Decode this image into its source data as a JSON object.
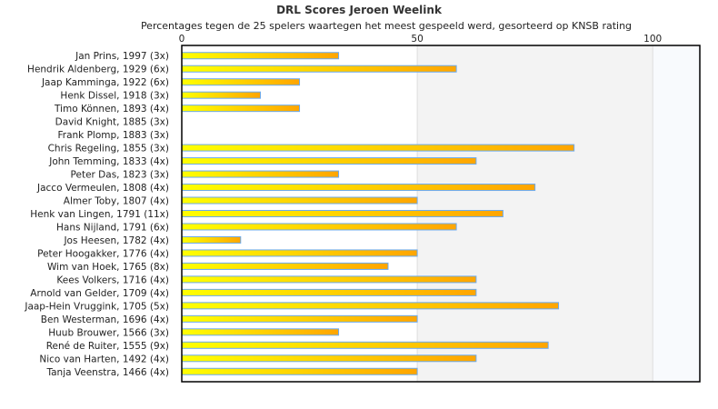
{
  "chart_data": {
    "type": "bar",
    "orientation": "horizontal",
    "title": "DRL Scores Jeroen Weelink",
    "subtitle": "Percentages tegen de 25 spelers waartegen het meest gespeeld werd, gesorteerd op KNSB rating",
    "xlim": [
      0,
      110
    ],
    "xticks": [
      0,
      50,
      100
    ],
    "grid": true,
    "categories": [
      "Jan Prins, 1997 (3x)",
      "Hendrik Aldenberg, 1929 (6x)",
      "Jaap Kamminga, 1922 (6x)",
      "Henk Dissel, 1918 (3x)",
      "Timo Können, 1893 (4x)",
      "David Knight, 1885 (3x)",
      "Frank Plomp, 1883 (3x)",
      "Chris Regeling, 1855 (3x)",
      "John Temming, 1833 (4x)",
      "Peter Das, 1823 (3x)",
      "Jacco Vermeulen, 1808 (4x)",
      "Almer Toby, 1807 (4x)",
      "Henk van Lingen, 1791 (11x)",
      "Hans Nijland, 1791 (6x)",
      "Jos Heesen, 1782 (4x)",
      "Peter Hoogakker, 1776 (4x)",
      "Wim van Hoek, 1765 (8x)",
      "Kees Volkers, 1716 (4x)",
      "Arnold van Gelder, 1709 (4x)",
      "Jaap-Hein Vruggink, 1705 (5x)",
      "Ben Westerman, 1696 (4x)",
      "Huub Brouwer, 1566 (3x)",
      "René de Ruiter, 1555 (9x)",
      "Nico van Harten, 1492 (4x)",
      "Tanja Veenstra, 1466 (4x)"
    ],
    "values": [
      33.3,
      58.3,
      25,
      16.7,
      25,
      0,
      0,
      83.3,
      62.5,
      33.3,
      75,
      50,
      68.2,
      58.3,
      12.5,
      50,
      43.8,
      62.5,
      62.5,
      80,
      50,
      33.3,
      77.8,
      62.5,
      50
    ],
    "colors": {
      "bar_start": "#ffff00",
      "bar_end": "#ffa500",
      "bar_border": "#6aaaf0",
      "band_mid": "#f3f3f3",
      "band_high": "#f8fafd"
    }
  }
}
